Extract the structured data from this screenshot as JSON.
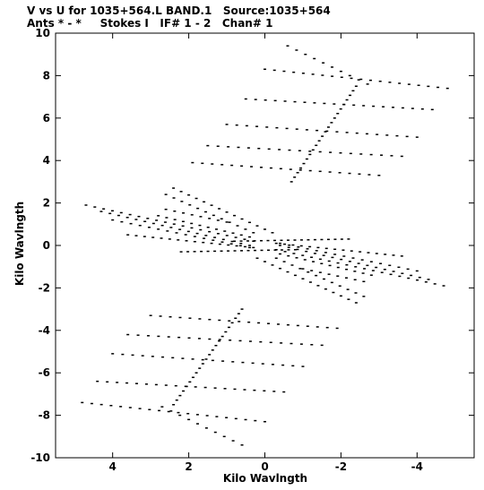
{
  "chart_data": {
    "type": "scatter",
    "title_line1": "V vs U for 1035+564.L BAND.1   Source:1035+564",
    "title_line2": "Ants * - *     Stokes I   IF# 1 - 2   Chan# 1",
    "xlabel": "Kilo Wavlngth",
    "ylabel": "Kilo Wavlngth",
    "xlim": [
      5.5,
      -5.5
    ],
    "ylim": [
      -10,
      10
    ],
    "x_ticks": [
      4,
      2,
      0,
      -2,
      -4
    ],
    "y_ticks": [
      10,
      8,
      6,
      4,
      2,
      0,
      -2,
      -4,
      -6,
      -8,
      -10
    ],
    "x_tick_labels": [
      "4",
      "2",
      "0",
      "-2",
      "-4"
    ],
    "y_tick_labels": [
      "10",
      "8",
      "6",
      "4",
      "2",
      "0",
      "-2",
      "-4",
      "-6",
      "-8",
      "-10"
    ],
    "grid": false,
    "series_description": "uv-coverage tracks: symmetric arcs of visibility samples",
    "tracks": [
      {
        "u_start": -0.6,
        "v_start": 9.4,
        "u_end": -2.7,
        "v_end": 7.6,
        "n": 10
      },
      {
        "u_start": 0.0,
        "v_start": 8.3,
        "u_end": -4.8,
        "v_end": 7.4,
        "n": 20
      },
      {
        "u_start": 0.5,
        "v_start": 6.9,
        "u_end": -4.4,
        "v_end": 6.4,
        "n": 20
      },
      {
        "u_start": 1.0,
        "v_start": 5.7,
        "u_end": -4.0,
        "v_end": 5.1,
        "n": 20
      },
      {
        "u_start": 1.5,
        "v_start": 4.7,
        "u_end": -3.6,
        "v_end": 4.2,
        "n": 20
      },
      {
        "u_start": 1.9,
        "v_start": 3.9,
        "u_end": -3.0,
        "v_end": 3.3,
        "n": 20
      },
      {
        "u_start": 2.4,
        "v_start": 2.7,
        "u_end": -0.2,
        "v_end": 0.6,
        "n": 14
      },
      {
        "u_start": 4.7,
        "v_start": 1.9,
        "u_end": 0.3,
        "v_end": 0.2,
        "n": 20
      },
      {
        "u_start": 4.3,
        "v_start": 1.6,
        "u_end": 0.4,
        "v_end": 0.0,
        "n": 18
      },
      {
        "u_start": 4.0,
        "v_start": 1.2,
        "u_end": 0.4,
        "v_end": -0.1,
        "n": 16
      },
      {
        "u_start": 3.6,
        "v_start": 0.5,
        "u_end": 0.3,
        "v_end": -0.1,
        "n": 16
      },
      {
        "u_start": 2.8,
        "v_start": 1.4,
        "u_end": 0.4,
        "v_end": 0.4,
        "n": 12
      },
      {
        "u_start": 2.6,
        "v_start": 1.7,
        "u_end": 1.0,
        "v_end": 1.1,
        "n": 8
      },
      {
        "u_start": 2.6,
        "v_start": 2.4,
        "u_end": 0.3,
        "v_end": 0.6,
        "n": 12
      },
      {
        "u_start": 0.6,
        "v_start": -9.4,
        "u_end": 2.7,
        "v_end": -7.6,
        "n": 10
      },
      {
        "u_start": 0.0,
        "v_start": -8.3,
        "u_end": 4.8,
        "v_end": -7.4,
        "n": 20
      },
      {
        "u_start": -0.5,
        "v_start": -6.9,
        "u_end": 4.4,
        "v_end": -6.4,
        "n": 20
      },
      {
        "u_start": -1.0,
        "v_start": -5.7,
        "u_end": 4.0,
        "v_end": -5.1,
        "n": 20
      },
      {
        "u_start": -1.5,
        "v_start": -4.7,
        "u_end": 3.6,
        "v_end": -4.2,
        "n": 20
      },
      {
        "u_start": -1.9,
        "v_start": -3.9,
        "u_end": 3.0,
        "v_end": -3.3,
        "n": 20
      },
      {
        "u_start": -2.4,
        "v_start": -2.7,
        "u_end": 0.2,
        "v_end": -0.6,
        "n": 14
      },
      {
        "u_start": -4.7,
        "v_start": -1.9,
        "u_end": -0.3,
        "v_end": -0.2,
        "n": 20
      },
      {
        "u_start": -4.3,
        "v_start": -1.6,
        "u_end": -0.4,
        "v_end": 0.0,
        "n": 18
      },
      {
        "u_start": -4.0,
        "v_start": -1.2,
        "u_end": -0.4,
        "v_end": 0.1,
        "n": 16
      },
      {
        "u_start": -3.6,
        "v_start": -0.5,
        "u_end": -0.3,
        "v_end": 0.1,
        "n": 16
      },
      {
        "u_start": -2.8,
        "v_start": -1.4,
        "u_end": -0.4,
        "v_end": -0.4,
        "n": 12
      },
      {
        "u_start": -2.6,
        "v_start": -1.7,
        "u_end": -1.0,
        "v_end": -1.1,
        "n": 8
      },
      {
        "u_start": -2.6,
        "v_start": -2.4,
        "u_end": -0.3,
        "v_end": -0.6,
        "n": 12
      },
      {
        "u_start": -0.7,
        "v_start": 3.0,
        "u_end": -2.4,
        "v_end": 7.5,
        "n": 22
      },
      {
        "u_start": 0.6,
        "v_start": -3.0,
        "u_end": 2.4,
        "v_end": -7.5,
        "n": 22
      },
      {
        "u_start": 0.8,
        "v_start": 0.2,
        "u_end": -2.2,
        "v_end": 0.3,
        "n": 18
      },
      {
        "u_start": -0.8,
        "v_start": -0.2,
        "u_end": 2.2,
        "v_end": -0.3,
        "n": 18
      }
    ]
  }
}
